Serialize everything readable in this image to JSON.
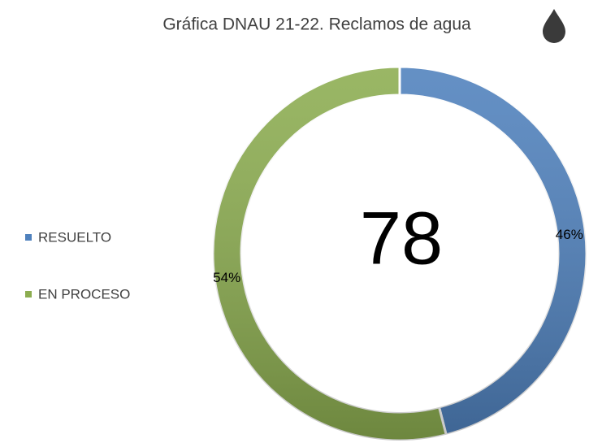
{
  "chart_data": {
    "type": "donut",
    "title": "Gráfica DNAU 21-22. Reclamos de agua",
    "categories": [
      "RESUELTO",
      "EN PROCESO"
    ],
    "values": [
      46,
      54
    ],
    "value_labels": [
      "46%",
      "54%"
    ],
    "colors": [
      "#4f81bd",
      "#8cad50"
    ],
    "center_text": "78",
    "legend": "left"
  }
}
